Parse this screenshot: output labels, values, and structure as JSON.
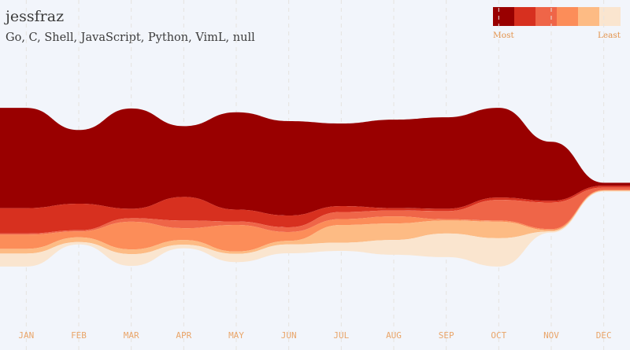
{
  "header": {
    "title": "jessfraz",
    "subtitle": "Go, C, Shell, JavaScript, Python, VimL, null"
  },
  "legend": {
    "most_label": "Most",
    "least_label": "Least",
    "colors": [
      "#990000",
      "#d7301f",
      "#ef6548",
      "#fc8d59",
      "#fdbb84",
      "#fae5cf"
    ]
  },
  "chart_data": {
    "type": "area",
    "categories": [
      "JAN",
      "FEB",
      "MAR",
      "APR",
      "MAY",
      "JUN",
      "JUL",
      "AUG",
      "SEP",
      "OCT",
      "NOV",
      "DEC"
    ],
    "series": [
      {
        "name": "Go",
        "color": "#990000",
        "values": [
          170,
          125,
          170,
          120,
          165,
          160,
          140,
          150,
          155,
          152,
          100,
          5
        ]
      },
      {
        "name": "C",
        "color": "#d7301f",
        "values": [
          43,
          45,
          16,
          40,
          20,
          20,
          10,
          4,
          4,
          4,
          3,
          3
        ]
      },
      {
        "name": "Shell",
        "color": "#ef6548",
        "values": [
          2,
          2,
          6,
          13,
          6,
          8,
          12,
          10,
          14,
          35,
          45,
          4
        ]
      },
      {
        "name": "JavaScript",
        "color": "#fc8d59",
        "values": [
          24,
          10,
          47,
          20,
          45,
          15,
          10,
          12,
          2,
          2,
          2,
          1
        ]
      },
      {
        "name": "Python",
        "color": "#fdbb84",
        "values": [
          8,
          8,
          8,
          8,
          4,
          6,
          30,
          28,
          22,
          28,
          2,
          1
        ]
      },
      {
        "name": "VimL",
        "color": "#fae5cf",
        "values": [
          22,
          4,
          20,
          6,
          14,
          15,
          14,
          25,
          40,
          48,
          2,
          1
        ]
      }
    ]
  }
}
